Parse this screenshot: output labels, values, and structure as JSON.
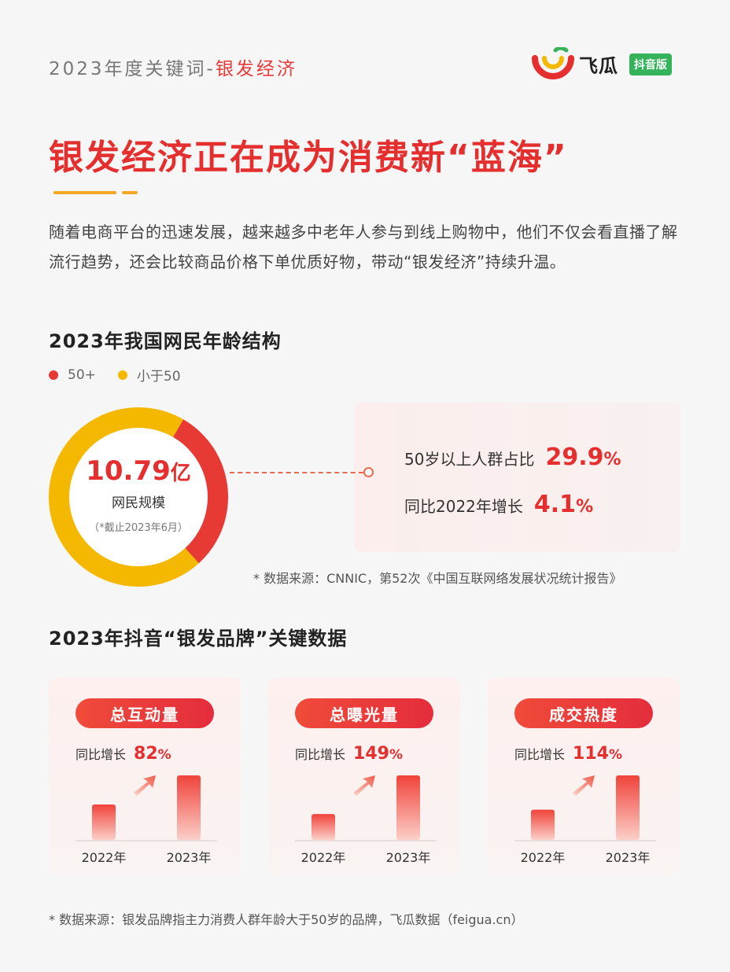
{
  "header": {
    "keyword_prefix": "2023年度关键词-",
    "keyword_highlight": "银发经济",
    "logo_name": "飞瓜",
    "logo_badge": "抖音版"
  },
  "main": {
    "title": "银发经济正在成为消费新“蓝海”",
    "intro": "随着电商平台的迅速发展，越来越多中老年人参与到线上购物中，他们不仅会看直播了解流行趋势，还会比较商品价格下单优质好物，带动“银发经济”持续升温。"
  },
  "section1": {
    "title": "2023年我国网民年龄结构",
    "donut_value": "10.79",
    "donut_unit": "亿",
    "donut_label": "网民规模",
    "donut_note": "（*截止2023年6月）",
    "stat1_label": "50岁以上人群占比",
    "stat1_value": "29.9",
    "stat1_unit": "%",
    "stat2_label": "同比2022年增长",
    "stat2_value": "4.1",
    "stat2_unit": "%",
    "source": "* 数据来源：CNNIC，第52次《中国互联网络发展状况统计报告》"
  },
  "section2": {
    "title": "2023年抖音“银发品牌”关键数据",
    "growth_prefix": "同比增长",
    "source": "* 数据来源：银发品牌指主力消费人群年龄大于50岁的品牌，飞瓜数据（feigua.cn）"
  },
  "chart_data": [
    {
      "type": "pie",
      "title": "2023年我国网民年龄结构",
      "categories": [
        "50+",
        "小于50"
      ],
      "values": [
        29.9,
        70.1
      ],
      "colors": [
        "#e83a35",
        "#f5b800"
      ],
      "legend": "top-left"
    },
    {
      "type": "bar",
      "title": "总互动量",
      "categories": [
        "2022年",
        "2023年"
      ],
      "values": [
        1.0,
        1.82
      ],
      "growth_value": "82",
      "growth_unit": "%"
    },
    {
      "type": "bar",
      "title": "总曝光量",
      "categories": [
        "2022年",
        "2023年"
      ],
      "values": [
        1.0,
        2.49
      ],
      "growth_value": "149",
      "growth_unit": "%"
    },
    {
      "type": "bar",
      "title": "成交热度",
      "categories": [
        "2022年",
        "2023年"
      ],
      "values": [
        1.0,
        2.14
      ],
      "growth_value": "114",
      "growth_unit": "%"
    }
  ],
  "colors": {
    "accent_red": "#e52e2e",
    "accent_yellow": "#f5b800",
    "logo_green": "#35b35a"
  }
}
